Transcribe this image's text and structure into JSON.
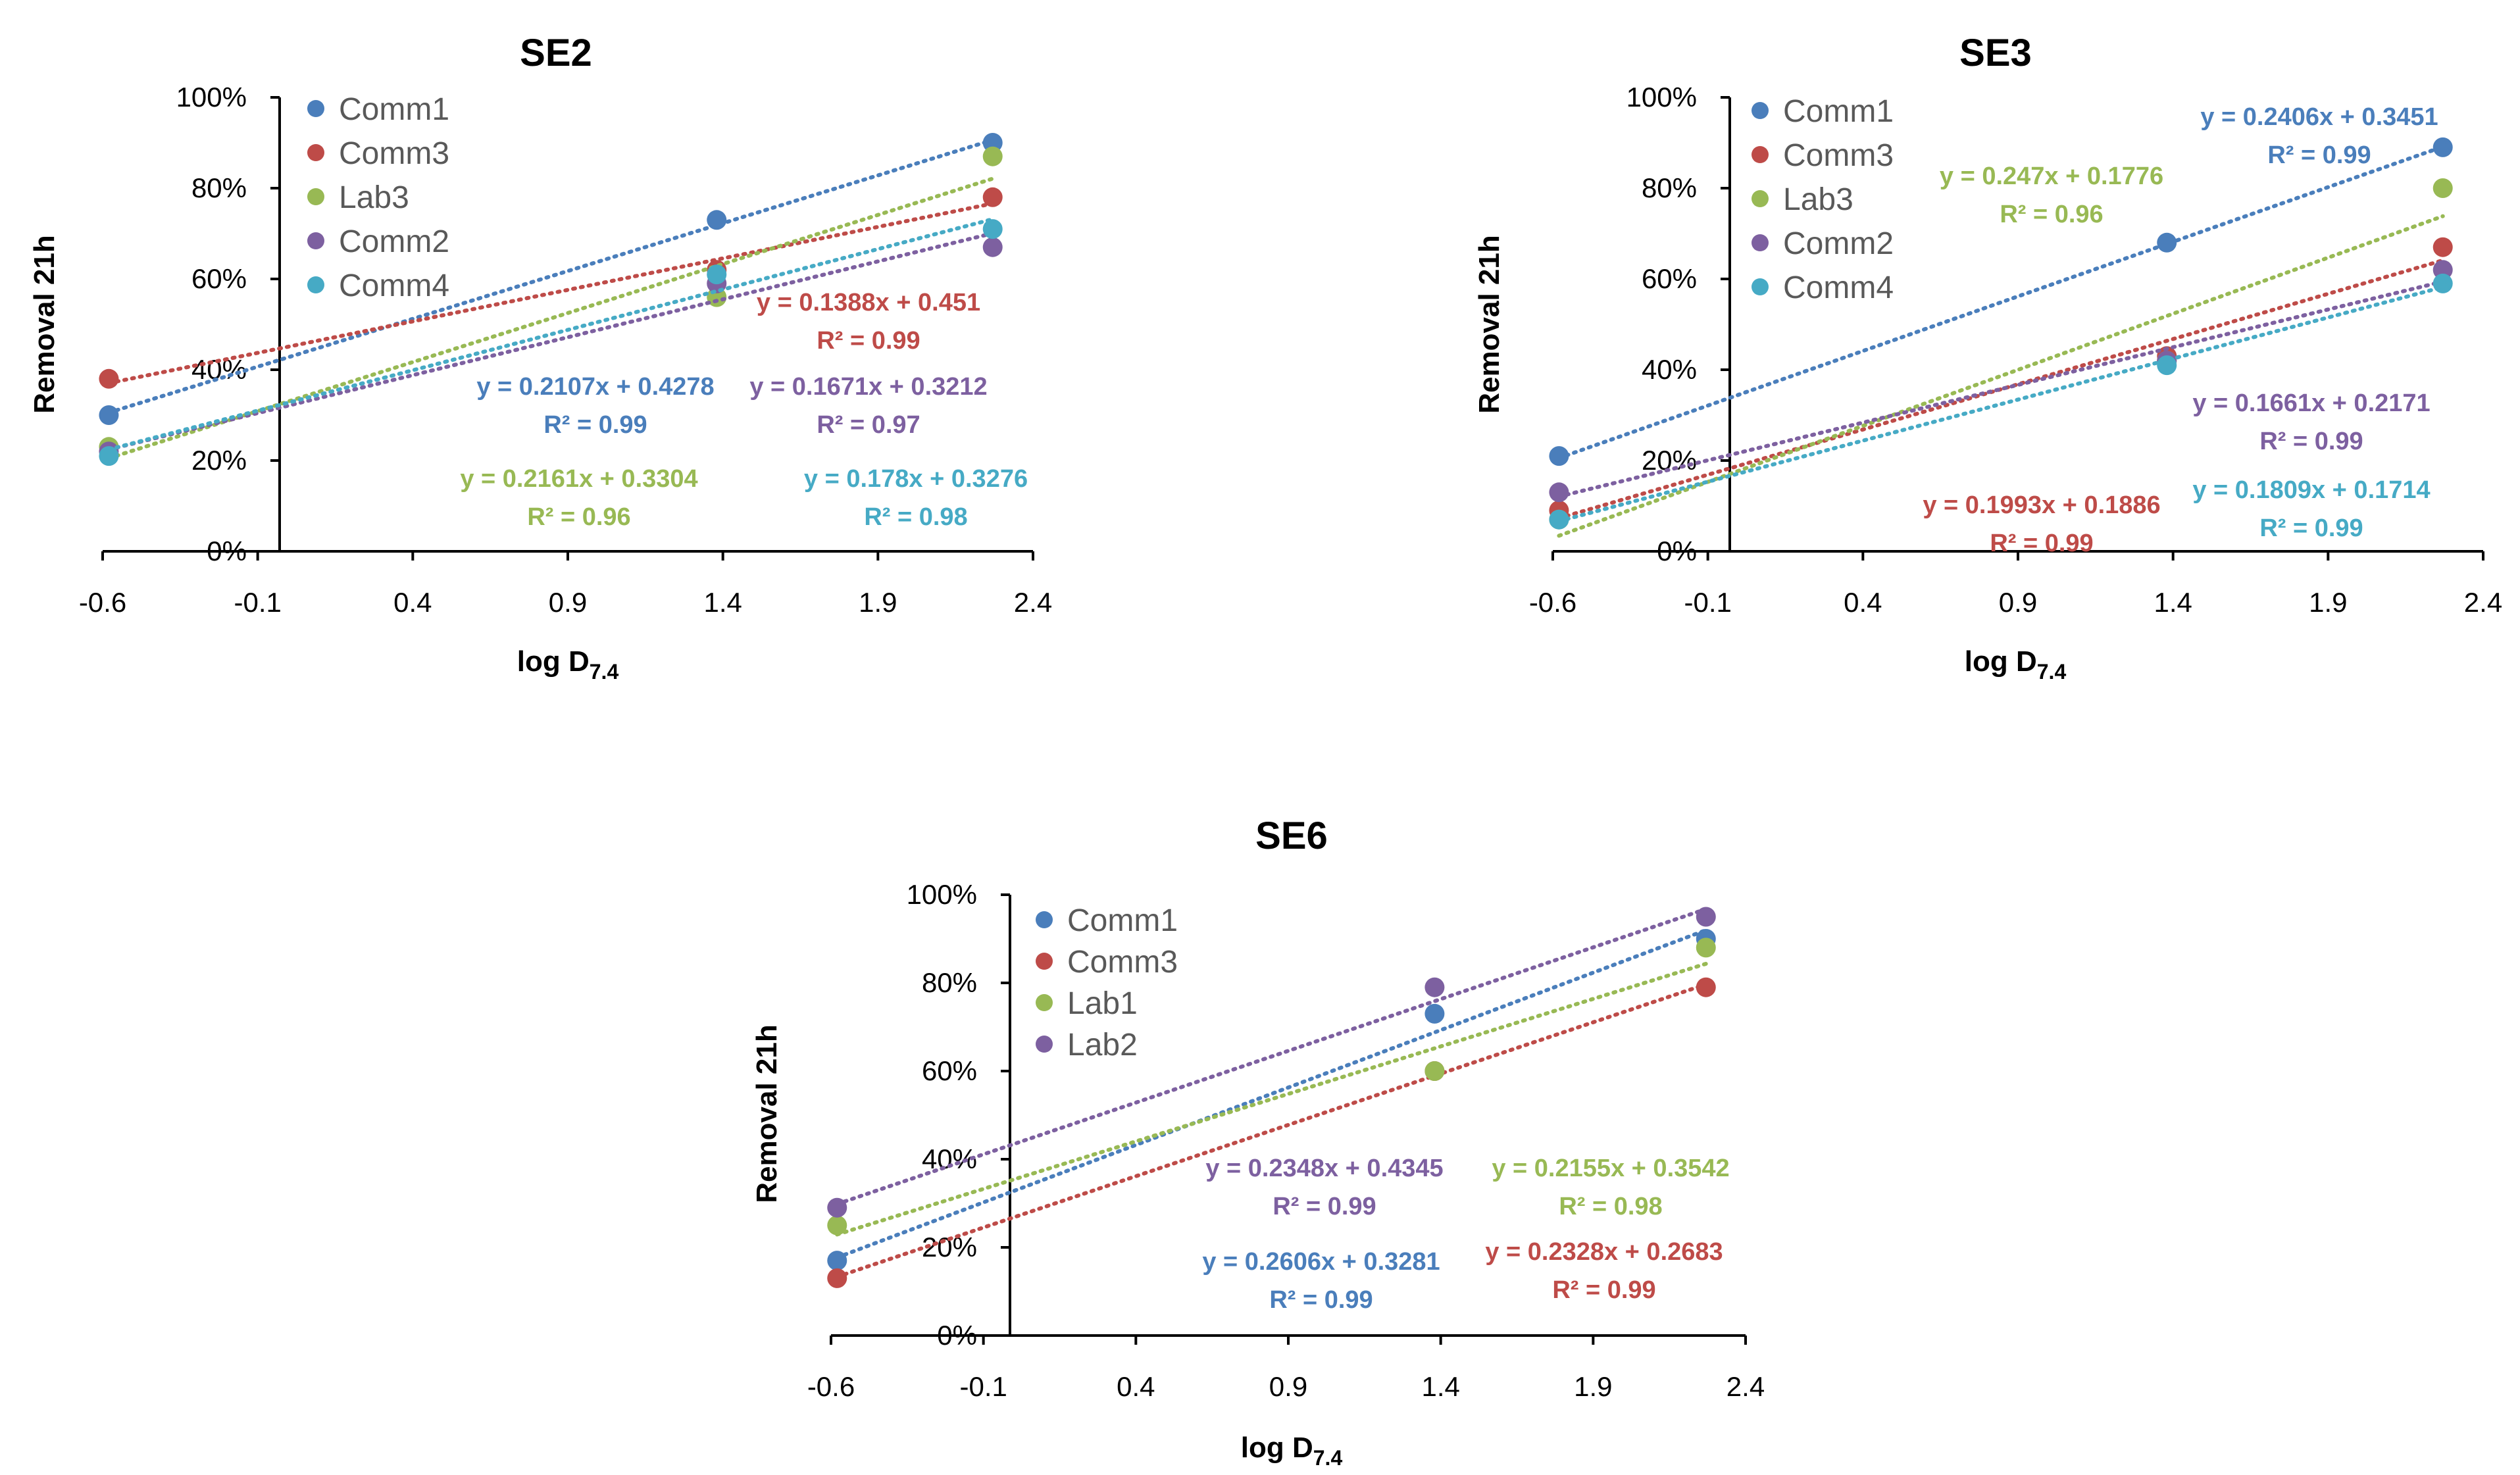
{
  "x_axis_label": "log D",
  "x_axis_subscript": "7.4",
  "chart_data": [
    {
      "type": "scatter",
      "title": "SE2",
      "xlabel": "log D7.4",
      "ylabel": "Removal 21h",
      "xlim": [
        -0.6,
        2.4
      ],
      "ylim": [
        0,
        1
      ],
      "x_ticks": [
        "-0.6",
        "-0.1",
        "0.4",
        "0.9",
        "1.4",
        "1.9",
        "2.4"
      ],
      "y_ticks": [
        "0%",
        "20%",
        "40%",
        "60%",
        "80%",
        "100%"
      ],
      "x": [
        -0.58,
        1.38,
        2.27
      ],
      "series": [
        {
          "name": "Comm1",
          "color": "#4a7ebb",
          "values": [
            0.3,
            0.73,
            0.9
          ],
          "slope": 0.2107,
          "intercept": 0.4278,
          "equation": "y = 0.2107x + 0.4278",
          "r2": "R² = 0.99"
        },
        {
          "name": "Comm3",
          "color": "#be4b48",
          "values": [
            0.38,
            0.62,
            0.78
          ],
          "slope": 0.1388,
          "intercept": 0.451,
          "equation": "y = 0.1388x + 0.451",
          "r2": "R² = 0.99"
        },
        {
          "name": "Lab3",
          "color": "#98b954",
          "values": [
            0.23,
            0.56,
            0.87
          ],
          "slope": 0.2161,
          "intercept": 0.3304,
          "equation": "y = 0.2161x + 0.3304",
          "r2": "R² = 0.96"
        },
        {
          "name": "Comm2",
          "color": "#7d60a0",
          "values": [
            0.22,
            0.59,
            0.67
          ],
          "slope": 0.1671,
          "intercept": 0.3212,
          "equation": "y = 0.1671x + 0.3212",
          "r2": "R² = 0.97"
        },
        {
          "name": "Comm4",
          "color": "#46aac5",
          "values": [
            0.21,
            0.61,
            0.71
          ],
          "slope": 0.178,
          "intercept": 0.3276,
          "equation": "y = 0.178x + 0.3276",
          "r2": "R² = 0.98"
        }
      ]
    },
    {
      "type": "scatter",
      "title": "SE3",
      "xlabel": "log D7.4",
      "ylabel": "Removal 21h",
      "xlim": [
        -0.6,
        2.4
      ],
      "ylim": [
        0,
        1
      ],
      "x_ticks": [
        "-0.6",
        "-0.1",
        "0.4",
        "0.9",
        "1.4",
        "1.9",
        "2.4"
      ],
      "y_ticks": [
        "0%",
        "20%",
        "40%",
        "60%",
        "80%",
        "100%"
      ],
      "x": [
        -0.58,
        1.38,
        2.27
      ],
      "series": [
        {
          "name": "Comm1",
          "color": "#4a7ebb",
          "values": [
            0.21,
            0.68,
            0.89
          ],
          "slope": 0.2406,
          "intercept": 0.3451,
          "equation": "y = 0.2406x + 0.3451",
          "r2": "R² = 0.99"
        },
        {
          "name": "Comm3",
          "color": "#be4b48",
          "values": [
            0.09,
            0.43,
            0.67
          ],
          "slope": 0.1993,
          "intercept": 0.1886,
          "equation": "y = 0.1993x + 0.1886",
          "r2": "R² = 0.99"
        },
        {
          "name": "Lab3",
          "color": "#98b954",
          "values": [
            0.07,
            0.42,
            0.8
          ],
          "slope": 0.247,
          "intercept": 0.1776,
          "equation": "y = 0.247x + 0.1776",
          "r2": "R² = 0.96"
        },
        {
          "name": "Comm2",
          "color": "#7d60a0",
          "values": [
            0.13,
            0.42,
            0.62
          ],
          "slope": 0.1661,
          "intercept": 0.2171,
          "equation": "y = 0.1661x + 0.2171",
          "r2": "R² = 0.99"
        },
        {
          "name": "Comm4",
          "color": "#46aac5",
          "values": [
            0.07,
            0.41,
            0.59
          ],
          "slope": 0.1809,
          "intercept": 0.1714,
          "equation": "y = 0.1809x + 0.1714",
          "r2": "R² = 0.99"
        }
      ]
    },
    {
      "type": "scatter",
      "title": "SE6",
      "xlabel": "log D7.4",
      "ylabel": "Removal 21h",
      "xlim": [
        -0.6,
        2.4
      ],
      "ylim": [
        0,
        1
      ],
      "x_ticks": [
        "-0.6",
        "-0.1",
        "0.4",
        "0.9",
        "1.4",
        "1.9",
        "2.4"
      ],
      "y_ticks": [
        "0%",
        "20%",
        "40%",
        "60%",
        "80%",
        "100%"
      ],
      "x": [
        -0.58,
        1.38,
        2.27
      ],
      "series": [
        {
          "name": "Comm1",
          "color": "#4a7ebb",
          "values": [
            0.17,
            0.73,
            0.9
          ],
          "slope": 0.2606,
          "intercept": 0.3281,
          "equation": "y = 0.2606x + 0.3281",
          "r2": "R² = 0.99"
        },
        {
          "name": "Comm3",
          "color": "#be4b48",
          "values": [
            0.13,
            0.6,
            0.79
          ],
          "slope": 0.2328,
          "intercept": 0.2683,
          "equation": "y = 0.2328x + 0.2683",
          "r2": "R² = 0.99"
        },
        {
          "name": "Lab1",
          "color": "#98b954",
          "values": [
            0.25,
            0.6,
            0.88
          ],
          "slope": 0.2155,
          "intercept": 0.3542,
          "equation": "y = 0.2155x + 0.3542",
          "r2": "R² = 0.98"
        },
        {
          "name": "Lab2",
          "color": "#7d60a0",
          "values": [
            0.29,
            0.79,
            0.95
          ],
          "slope": 0.2348,
          "intercept": 0.4345,
          "equation": "y = 0.2348x + 0.4345",
          "r2": "R² = 0.99"
        }
      ]
    }
  ]
}
